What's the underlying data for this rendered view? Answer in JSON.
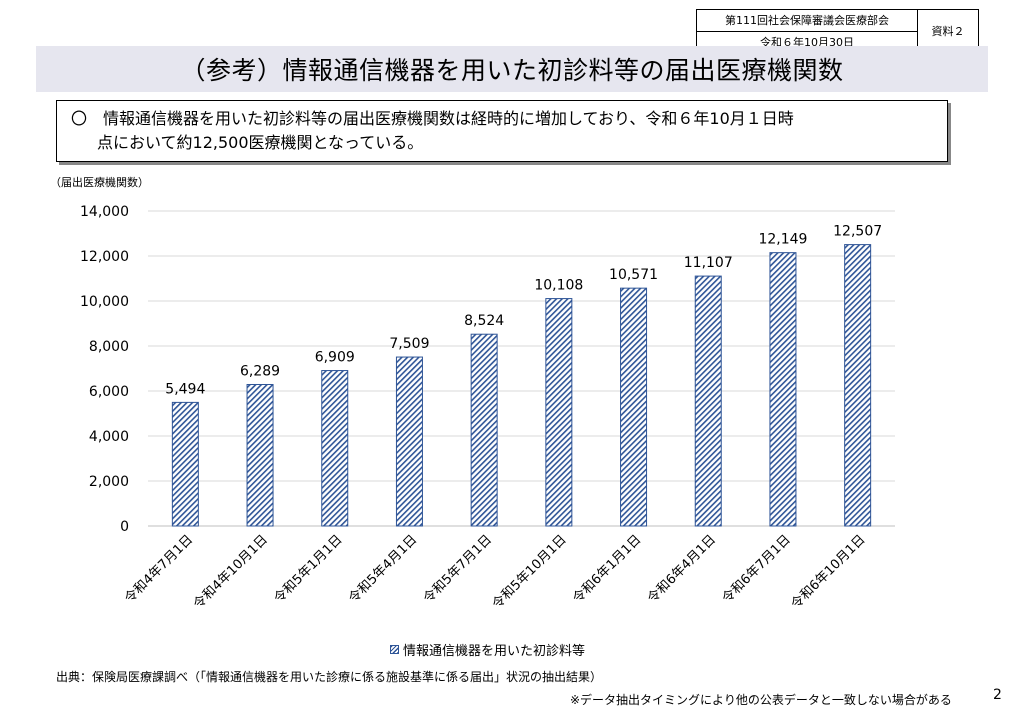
{
  "meta": {
    "meeting": "第111回社会保障審議会医療部会",
    "date": "令和６年10月30日",
    "doc_label": "資料２"
  },
  "title": "（参考）情報通信機器を用いた初診料等の届出医療機関数",
  "summary": {
    "line1": "〇　情報通信機器を用いた初診料等の届出医療機関数は経時的に増加しており、令和６年10月１日時",
    "line2": "点において約12,500医療機関となっている。"
  },
  "unit_label": "（届出医療機関数）",
  "chart_data": {
    "type": "bar",
    "title": "",
    "xlabel": "",
    "ylabel": "（届出医療機関数）",
    "categories": [
      "令和4年7月1日",
      "令和4年10月1日",
      "令和5年1月1日",
      "令和5年4月1日",
      "令和5年7月1日",
      "令和5年10月1日",
      "令和6年1月1日",
      "令和6年4月1日",
      "令和6年7月1日",
      "令和6年10月1日"
    ],
    "series": [
      {
        "name": "情報通信機器を用いた初診料等",
        "values": [
          5494,
          6289,
          6909,
          7509,
          8524,
          10108,
          10571,
          11107,
          12149,
          12507
        ],
        "value_labels": [
          "5,494",
          "6,289",
          "6,909",
          "7,509",
          "8,524",
          "10,108",
          "10,571",
          "11,107",
          "12,149",
          "12,507"
        ]
      }
    ],
    "ylim": [
      0,
      14000
    ],
    "yticks": [
      0,
      2000,
      4000,
      6000,
      8000,
      10000,
      12000,
      14000
    ],
    "ytick_labels": [
      "0",
      "2,000",
      "4,000",
      "6,000",
      "8,000",
      "10,000",
      "12,000",
      "14,000"
    ],
    "grid": true,
    "legend": "bottom",
    "bar_color": "#2f5597",
    "bar_pattern": "diagonal-hatch"
  },
  "source": "出典：保険局医療課調べ（「情報通信機器を用いた診療に係る施設基準に係る届出」状況の抽出結果）",
  "note": "※データ抽出タイミングにより他の公表データと一致しない場合がある",
  "page_number": "2"
}
